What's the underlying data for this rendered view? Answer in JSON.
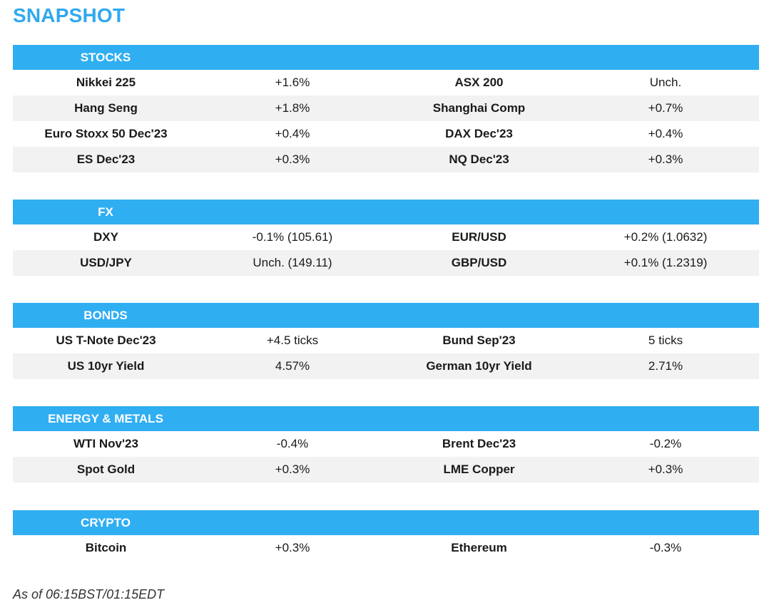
{
  "title": "SNAPSHOT",
  "sections": [
    {
      "header": "STOCKS",
      "rows": [
        [
          "Nikkei 225",
          "+1.6%",
          "ASX 200",
          "Unch."
        ],
        [
          "Hang Seng",
          "+1.8%",
          "Shanghai Comp",
          "+0.7%"
        ],
        [
          "Euro Stoxx 50 Dec'23",
          "+0.4%",
          "DAX Dec'23",
          "+0.4%"
        ],
        [
          "ES Dec'23",
          "+0.3%",
          "NQ Dec'23",
          "+0.3%"
        ]
      ]
    },
    {
      "header": "FX",
      "rows": [
        [
          "DXY",
          "-0.1% (105.61)",
          "EUR/USD",
          "+0.2% (1.0632)"
        ],
        [
          "USD/JPY",
          "Unch. (149.11)",
          "GBP/USD",
          "+0.1% (1.2319)"
        ]
      ]
    },
    {
      "header": "BONDS",
      "rows": [
        [
          "US T-Note Dec'23",
          "+4.5 ticks",
          "Bund Sep'23",
          "5 ticks"
        ],
        [
          "US 10yr Yield",
          "4.57%",
          "German 10yr Yield",
          "2.71%"
        ]
      ]
    },
    {
      "header": "ENERGY & METALS",
      "rows": [
        [
          "WTI Nov'23",
          "-0.4%",
          "Brent Dec'23",
          "-0.2%"
        ],
        [
          "Spot Gold",
          "+0.3%",
          "LME Copper",
          "+0.3%"
        ]
      ]
    },
    {
      "header": "CRYPTO",
      "rows": [
        [
          "Bitcoin",
          "+0.3%",
          "Ethereum",
          "-0.3%"
        ]
      ]
    }
  ],
  "footer": "As of 06:15BST/01:15EDT",
  "colors": {
    "accent": "#30aef2",
    "title": "#30a9ee",
    "stripe": "#f2f2f2"
  }
}
